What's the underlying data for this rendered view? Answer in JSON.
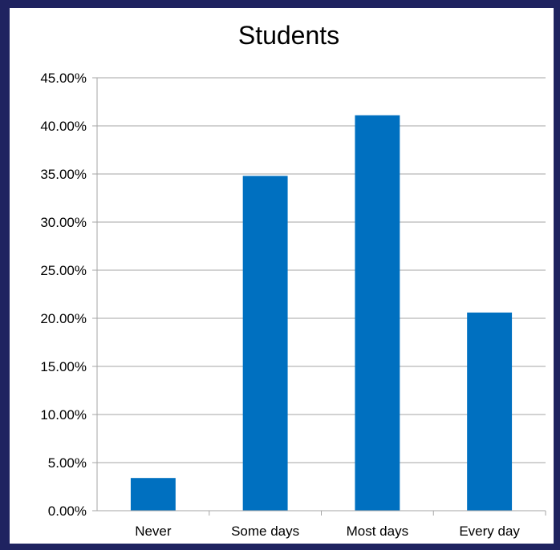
{
  "colors": {
    "background": "#1f2360",
    "panel": "#ffffff",
    "bar": "#0070c0",
    "gridline": "#a6a6a6"
  },
  "chart_data": {
    "type": "bar",
    "title": "Students",
    "xlabel": "",
    "ylabel": "",
    "categories": [
      "Never",
      "Some days",
      "Most days",
      "Every day"
    ],
    "values": [
      3.4,
      34.8,
      41.1,
      20.6
    ],
    "value_format": "percent",
    "ylim": [
      0,
      45
    ],
    "yticks": [
      0,
      5,
      10,
      15,
      20,
      25,
      30,
      35,
      40,
      45
    ],
    "ytick_labels": [
      "0.00%",
      "5.00%",
      "10.00%",
      "15.00%",
      "20.00%",
      "25.00%",
      "30.00%",
      "35.00%",
      "40.00%",
      "45.00%"
    ],
    "grid": true,
    "legend": "none"
  }
}
